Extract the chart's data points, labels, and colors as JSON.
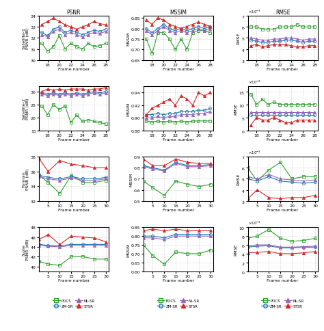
{
  "rows": [
    "Satellite-1",
    "Satellite-2",
    "Forman",
    "Suzie"
  ],
  "cols": [
    "PSNR",
    "MSSIM",
    "RMSE"
  ],
  "methods": [
    "POCS",
    "ZM-SR",
    "NL-SR",
    "STSR"
  ],
  "colors": [
    "#2ca02c",
    "#1f77b4",
    "#9467bd",
    "#d62728"
  ],
  "markers": [
    "s",
    "o",
    "^",
    "^"
  ],
  "marker_styles": [
    "s",
    "o",
    "^",
    "^"
  ],
  "frames_satellite": [
    17,
    18,
    19,
    20,
    21,
    22,
    23,
    24,
    25,
    26,
    27,
    28
  ],
  "frames_forman": [
    1,
    5,
    10,
    15,
    20,
    25,
    30
  ],
  "frames_suzie": [
    1,
    5,
    10,
    15,
    20,
    25,
    30
  ],
  "sat1_psnr": {
    "POCS": [
      31.5,
      30.8,
      31.2,
      32.2,
      31.0,
      31.5,
      31.2,
      31.0,
      31.5,
      31.2,
      31.3,
      31.5
    ],
    "ZM-SR": [
      32.5,
      32.2,
      32.8,
      33.0,
      32.5,
      32.7,
      32.5,
      32.3,
      32.5,
      32.7,
      32.6,
      32.8
    ],
    "NL-SR": [
      32.3,
      32.1,
      32.6,
      32.8,
      32.3,
      32.5,
      32.3,
      32.1,
      32.3,
      32.5,
      32.4,
      32.6
    ],
    "STSR": [
      33.2,
      33.5,
      33.8,
      33.5,
      33.2,
      33.0,
      32.8,
      33.0,
      33.2,
      33.5,
      33.3,
      33.2
    ]
  },
  "sat1_mssim": {
    "POCS": [
      0.75,
      0.68,
      0.78,
      0.78,
      0.75,
      0.7,
      0.75,
      0.7,
      0.78,
      0.79,
      0.79,
      0.78
    ],
    "ZM-SR": [
      0.8,
      0.78,
      0.8,
      0.82,
      0.8,
      0.79,
      0.8,
      0.79,
      0.8,
      0.81,
      0.8,
      0.81
    ],
    "NL-SR": [
      0.79,
      0.77,
      0.79,
      0.81,
      0.79,
      0.78,
      0.79,
      0.78,
      0.79,
      0.8,
      0.79,
      0.8
    ],
    "STSR": [
      0.84,
      0.82,
      0.85,
      0.84,
      0.82,
      0.81,
      0.8,
      0.81,
      0.82,
      0.83,
      0.82,
      0.81
    ]
  },
  "sat1_rmse": {
    "POCS": [
      0.006,
      0.006,
      0.0058,
      0.0058,
      0.0058,
      0.006,
      0.006,
      0.006,
      0.0062,
      0.006,
      0.006,
      0.006
    ],
    "ZM-SR": [
      0.0048,
      0.0047,
      0.0046,
      0.0046,
      0.0047,
      0.0047,
      0.0048,
      0.0048,
      0.0047,
      0.0046,
      0.0047,
      0.0047
    ],
    "NL-SR": [
      0.005,
      0.0049,
      0.0048,
      0.0048,
      0.0049,
      0.0049,
      0.005,
      0.005,
      0.0049,
      0.0048,
      0.0049,
      0.0049
    ],
    "STSR": [
      0.0043,
      0.0044,
      0.0042,
      0.0043,
      0.0044,
      0.0044,
      0.0044,
      0.0043,
      0.0042,
      0.0042,
      0.0043,
      0.0043
    ]
  },
  "sat2_psnr": {
    "POCS": [
      24.5,
      21.0,
      25.0,
      23.0,
      24.5,
      18.0,
      21.0,
      18.5,
      19.0,
      18.5,
      18.0,
      17.5
    ],
    "ZM-SR": [
      29.5,
      29.0,
      29.5,
      29.0,
      29.5,
      29.0,
      29.5,
      29.0,
      29.5,
      30.0,
      29.5,
      30.0
    ],
    "NL-SR": [
      29.0,
      28.5,
      29.0,
      28.5,
      29.0,
      28.5,
      29.0,
      28.5,
      29.0,
      29.5,
      29.0,
      29.5
    ],
    "STSR": [
      30.0,
      31.0,
      30.5,
      31.0,
      30.5,
      31.0,
      31.0,
      31.0,
      30.5,
      31.0,
      31.0,
      31.5
    ]
  },
  "sat2_mssim": {
    "POCS": [
      0.895,
      0.893,
      0.895,
      0.893,
      0.895,
      0.893,
      0.895,
      0.893,
      0.895,
      0.895,
      0.895,
      0.895
    ],
    "ZM-SR": [
      0.905,
      0.905,
      0.907,
      0.905,
      0.907,
      0.907,
      0.91,
      0.91,
      0.91,
      0.912,
      0.912,
      0.915
    ],
    "NL-SR": [
      0.9,
      0.9,
      0.902,
      0.9,
      0.902,
      0.902,
      0.905,
      0.905,
      0.905,
      0.907,
      0.907,
      0.91
    ],
    "STSR": [
      0.905,
      0.915,
      0.92,
      0.925,
      0.93,
      0.92,
      0.935,
      0.93,
      0.92,
      0.94,
      0.935,
      0.94
    ]
  },
  "sat2_rmse": {
    "POCS": [
      0.014,
      0.01,
      0.012,
      0.01,
      0.011,
      0.01,
      0.01,
      0.01,
      0.01,
      0.01,
      0.01,
      0.01
    ],
    "ZM-SR": [
      0.006,
      0.006,
      0.006,
      0.006,
      0.006,
      0.006,
      0.006,
      0.006,
      0.006,
      0.006,
      0.006,
      0.006
    ],
    "NL-SR": [
      0.007,
      0.007,
      0.007,
      0.007,
      0.007,
      0.007,
      0.007,
      0.007,
      0.007,
      0.007,
      0.007,
      0.007
    ],
    "STSR": [
      0.002,
      0.005,
      0.004,
      0.004,
      0.005,
      0.004,
      0.003,
      0.003,
      0.004,
      0.004,
      0.004,
      0.004
    ]
  },
  "forman_psnr": {
    "POCS": [
      35.5,
      34.5,
      33.0,
      35.5,
      34.5,
      34.5,
      34.8
    ],
    "ZM-SR": [
      35.5,
      35.2,
      35.0,
      35.3,
      35.0,
      35.0,
      35.2
    ],
    "NL-SR": [
      35.3,
      35.0,
      34.8,
      35.1,
      34.8,
      34.8,
      35.0
    ],
    "STSR": [
      37.8,
      36.0,
      37.5,
      37.0,
      36.8,
      36.5,
      36.5
    ]
  },
  "forman_mssim": {
    "POCS": [
      0.68,
      0.62,
      0.55,
      0.68,
      0.65,
      0.63,
      0.65
    ],
    "ZM-SR": [
      0.82,
      0.8,
      0.78,
      0.85,
      0.82,
      0.82,
      0.83
    ],
    "NL-SR": [
      0.81,
      0.79,
      0.77,
      0.84,
      0.81,
      0.81,
      0.82
    ],
    "STSR": [
      0.88,
      0.82,
      0.82,
      0.88,
      0.85,
      0.84,
      0.84
    ]
  },
  "forman_rmse": {
    "POCS": [
      0.006,
      0.0048,
      0.0058,
      0.0065,
      0.005,
      0.0052,
      0.0052
    ],
    "ZM-SR": [
      0.005,
      0.0048,
      0.0052,
      0.0048,
      0.0047,
      0.0046,
      0.0047
    ],
    "NL-SR": [
      0.0052,
      0.005,
      0.0054,
      0.005,
      0.0049,
      0.0048,
      0.0049
    ],
    "STSR": [
      0.0032,
      0.004,
      0.0033,
      0.0032,
      0.0033,
      0.0033,
      0.0035
    ]
  },
  "suzie_psnr": {
    "POCS": [
      41.0,
      40.5,
      40.2,
      42.0,
      42.0,
      41.5,
      41.5
    ],
    "ZM-SR": [
      44.5,
      44.3,
      44.2,
      44.5,
      44.5,
      44.5,
      44.5
    ],
    "NL-SR": [
      44.3,
      44.1,
      44.0,
      44.3,
      44.3,
      44.3,
      44.3
    ],
    "STSR": [
      45.5,
      46.5,
      44.5,
      46.2,
      46.0,
      45.8,
      45.0
    ]
  },
  "suzie_mssim": {
    "POCS": [
      0.75,
      0.69,
      0.64,
      0.71,
      0.7,
      0.7,
      0.72
    ],
    "ZM-SR": [
      0.8,
      0.8,
      0.79,
      0.81,
      0.81,
      0.81,
      0.81
    ],
    "NL-SR": [
      0.79,
      0.79,
      0.78,
      0.8,
      0.8,
      0.8,
      0.8
    ],
    "STSR": [
      0.83,
      0.84,
      0.83,
      0.84,
      0.83,
      0.83,
      0.83
    ]
  },
  "suzie_rmse": {
    "POCS": [
      0.0075,
      0.008,
      0.0095,
      0.0075,
      0.0068,
      0.007,
      0.0075
    ],
    "ZM-SR": [
      0.0055,
      0.0057,
      0.0058,
      0.0053,
      0.0053,
      0.0054,
      0.0055
    ],
    "NL-SR": [
      0.0058,
      0.006,
      0.006,
      0.0055,
      0.0055,
      0.0056,
      0.0057
    ],
    "STSR": [
      0.0042,
      0.0043,
      0.0045,
      0.004,
      0.004,
      0.0042,
      0.0045
    ]
  },
  "col_titles": [
    "PSNR",
    "MSSIM",
    "RMSE"
  ],
  "row_ylabels_psnr": [
    "Satellite-1\nPSNR (dB)",
    "Satellite-2\nPSNR (dB)",
    "Forman\nPSNR (dB)",
    "Suzie\nPSNR (dB)"
  ],
  "row_ylabels_mssim": [
    "MSSIM",
    "MSSIM",
    "MSSIM",
    "MSSIM"
  ],
  "row_ylabels_rmse": [
    "RMSE",
    "RMSE",
    "RMSE",
    "RMSE"
  ],
  "sat1_psnr_ylim": [
    30,
    34
  ],
  "sat1_mssim_ylim": [
    0.65,
    0.86
  ],
  "sat1_rmse_ylim": [
    0.003,
    0.007
  ],
  "sat2_psnr_ylim": [
    15,
    32
  ],
  "sat2_mssim_ylim": [
    0.88,
    0.95
  ],
  "sat2_rmse_ylim": [
    0,
    0.017
  ],
  "forman_psnr_ylim": [
    32,
    38
  ],
  "forman_mssim_ylim": [
    0.5,
    0.9
  ],
  "forman_rmse_ylim": [
    0.003,
    0.007
  ],
  "suzie_psnr_ylim": [
    39,
    48
  ],
  "suzie_mssim_ylim": [
    0.6,
    0.85
  ],
  "suzie_rmse_ylim": [
    0,
    0.01
  ]
}
